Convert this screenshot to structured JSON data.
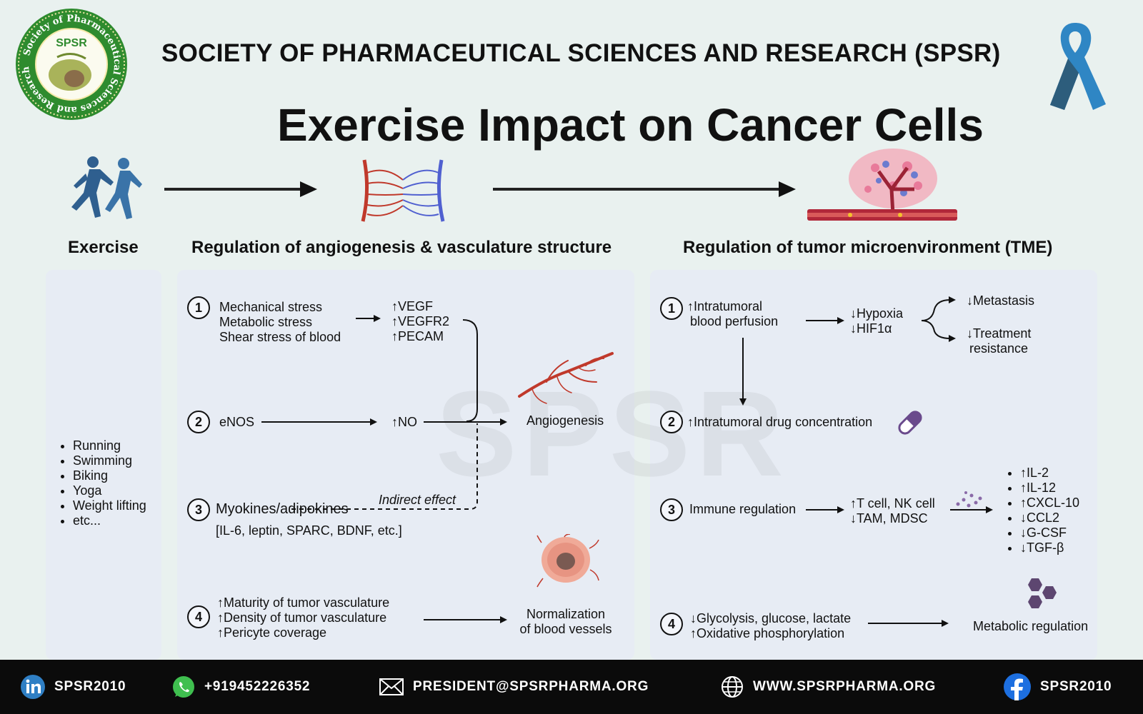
{
  "header": {
    "org_name": "SOCIETY OF PHARMACEUTICAL  SCIENCES AND RESEARCH (SPSR)",
    "title": "Exercise Impact on Cancer Cells",
    "logo_text": "SPSR",
    "logo_ring_text": "Society of Pharmaceutical Sciences and Research"
  },
  "watermark": "SPSR",
  "sections": {
    "exercise": "Exercise",
    "angiogenesis": "Regulation of angiogenesis & vasculature structure",
    "tme": "Regulation of tumor microenvironment (TME)"
  },
  "exercise_list": [
    "Running",
    "Swimming",
    "Biking",
    "Yoga",
    "Weight lifting",
    "etc..."
  ],
  "angio": {
    "n1": "1",
    "stress": [
      "Mechanical stress",
      "Metabolic stress",
      "Shear stress of blood"
    ],
    "factors": [
      "↑VEGF",
      "↑VEGFR2",
      "↑PECAM"
    ],
    "n2": "2",
    "enos": "eNOS",
    "no": "↑NO",
    "angiogenesis": "Angiogenesis",
    "indirect": "Indirect effect",
    "n3": "3",
    "myokines": "Myokines/adipokines",
    "myokines_sub": "[IL-6, leptin, SPARC, BDNF, etc.]",
    "n4": "4",
    "vasculature": [
      "↑Maturity of tumor vasculature",
      "↑Density of tumor vasculature",
      "↑Pericyte coverage"
    ],
    "normalization": [
      "Normalization",
      "of blood vessels"
    ]
  },
  "tme": {
    "n1": "1",
    "perfusion": [
      "↑Intratumoral",
      "blood perfusion"
    ],
    "hypoxia": [
      "↓Hypoxia",
      "↓HIF1α"
    ],
    "metastasis": "↓Metastasis",
    "treatment": [
      "↓Treatment",
      "resistance"
    ],
    "n2": "2",
    "drug": "↑Intratumoral drug concentration",
    "n3": "3",
    "immune": "Immune regulation",
    "cells": [
      "↑T cell, NK cell",
      "↓TAM, MDSC"
    ],
    "cytokines": [
      "↑IL-2",
      "↑IL-12",
      "↑CXCL-10",
      "↓CCL2",
      "↓G-CSF",
      "↓TGF-β"
    ],
    "n4": "4",
    "glycolysis": [
      "↓Glycolysis, glucose, lactate",
      "↑Oxidative phosphorylation"
    ],
    "metabolic": "Metabolic regulation"
  },
  "footer": {
    "linkedin": "SPSR2010",
    "whatsapp": "+919452226352",
    "email": "PRESIDENT@SPSRPHARMA.ORG",
    "web": "WWW.SPSRPHARMA.ORG",
    "facebook": "SPSR2010"
  },
  "icons": {
    "logo": "spsr-logo-icon",
    "ribbon": "cancer-ribbon-icon",
    "runners": "runners-icon",
    "vessels": "blood-vessels-icon",
    "tumor": "tumor-vessel-icon",
    "angiogenesis": "angiogenesis-vessel-icon",
    "tumor_cell": "tumor-cell-icon",
    "pill": "pill-icon",
    "cytokine": "cytokine-dots-icon",
    "hexagons": "hexagon-molecule-icon"
  },
  "colors": {
    "background": "#e9f1ef",
    "panel": "#e7ecf4",
    "logo_green": "#2e8b2e",
    "ribbon_blue": "#2f86c4",
    "runner_blue": "#2f5f8f",
    "artery_red": "#c0392b",
    "vein_blue": "#5060d0",
    "pill_purple": "#6a4a8c",
    "footer": "#0b0b0b"
  }
}
